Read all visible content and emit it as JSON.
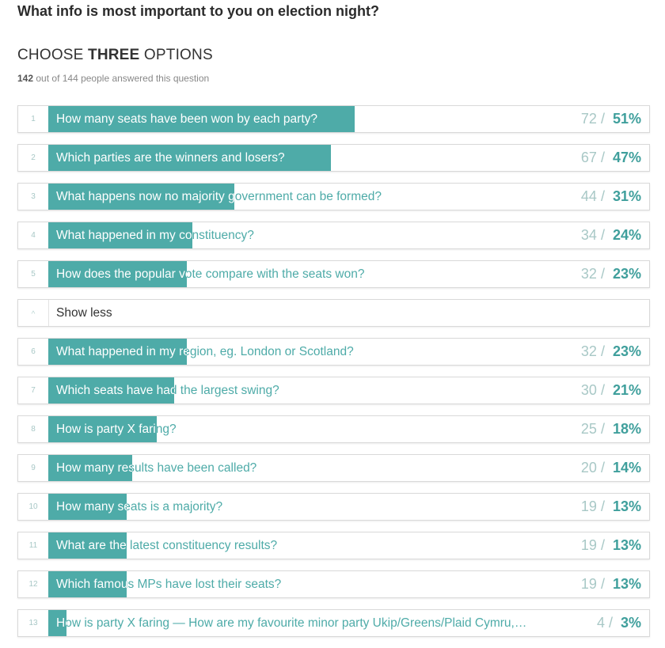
{
  "question": "What info is most important to you on election night?",
  "instruction": {
    "prefix": "CHOOSE",
    "emphasis": "THREE",
    "suffix": "OPTIONS"
  },
  "answered": {
    "count": "142",
    "text": "out of 144 people answered this question"
  },
  "toggle": {
    "label": "Show less",
    "icon": "chevron-up-icon",
    "glyph": "^"
  },
  "options_top": [
    {
      "rank": "1",
      "label": "How many seats have been won by each party?",
      "votes": "72",
      "percent": "51%",
      "fraction": 0.51
    },
    {
      "rank": "2",
      "label": "Which parties are the winners and losers?",
      "votes": "67",
      "percent": "47%",
      "fraction": 0.47
    },
    {
      "rank": "3",
      "label": "What happens now no majority government can be formed?",
      "votes": "44",
      "percent": "31%",
      "fraction": 0.31
    },
    {
      "rank": "4",
      "label": "What happened in my constituency?",
      "votes": "34",
      "percent": "24%",
      "fraction": 0.24
    },
    {
      "rank": "5",
      "label": "How does the popular vote compare with the seats won?",
      "votes": "32",
      "percent": "23%",
      "fraction": 0.23
    }
  ],
  "options_more": [
    {
      "rank": "6",
      "label": "What happened in my region, eg. London or Scotland?",
      "votes": "32",
      "percent": "23%",
      "fraction": 0.23
    },
    {
      "rank": "7",
      "label": "Which seats have had the largest swing?",
      "votes": "30",
      "percent": "21%",
      "fraction": 0.21
    },
    {
      "rank": "8",
      "label": "How is party X faring?",
      "votes": "25",
      "percent": "18%",
      "fraction": 0.18
    },
    {
      "rank": "9",
      "label": "How many results have been called?",
      "votes": "20",
      "percent": "14%",
      "fraction": 0.14
    },
    {
      "rank": "10",
      "label": "How many seats is a majority?",
      "votes": "19",
      "percent": "13%",
      "fraction": 0.13
    },
    {
      "rank": "11",
      "label": "What are the latest constituency results?",
      "votes": "19",
      "percent": "13%",
      "fraction": 0.13
    },
    {
      "rank": "12",
      "label": "Which famous MPs have lost their seats?",
      "votes": "19",
      "percent": "13%",
      "fraction": 0.13
    },
    {
      "rank": "13",
      "label": "How is party X faring — How are my favourite minor party Ukip/Greens/Plaid Cymru,…",
      "votes": "4",
      "percent": "3%",
      "fraction": 0.03
    }
  ],
  "colors": {
    "accent": "#4eaba8",
    "accent_light": "#a8c8c6",
    "border": "#d9d9d9"
  }
}
